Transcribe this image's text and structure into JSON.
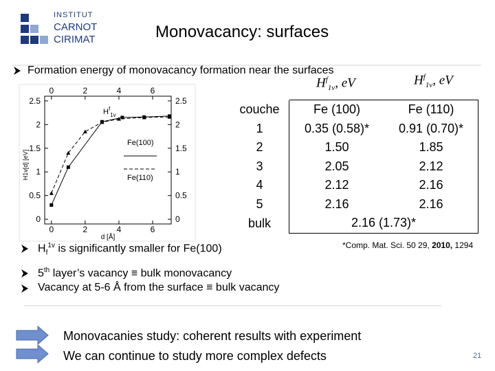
{
  "logo": {
    "lines": [
      "INSTITUT",
      "CARNOT",
      "CIRIMAT"
    ]
  },
  "title": "Monovacancy: surfaces",
  "intro": "Formation energy of  monovacancy formation near the surfaces",
  "formula_labels": [
    {
      "symbol": "H",
      "sup": "f",
      "sub": "1v",
      "rest": ", eV"
    },
    {
      "symbol": "H",
      "sup": "f",
      "sub": "1v",
      "rest": ", eV"
    }
  ],
  "figure": {
    "type": "line",
    "xlim": [
      -0.4,
      7.1
    ],
    "ylim": [
      -0.1,
      2.6
    ],
    "xticks": [
      0,
      2,
      4,
      6
    ],
    "yticks": [
      0,
      0.5,
      1,
      1.5,
      2,
      2.5
    ],
    "y_label": "H1v[d] [eV]",
    "x_label": "d [Å]",
    "annotation": {
      "symbol": "H",
      "sup": "f",
      "sub": "1v"
    },
    "series": [
      {
        "name": "Fe(100)",
        "color": "#000000",
        "x": [
          0,
          1,
          3,
          4.2,
          5.5,
          7
        ],
        "values": [
          0.3,
          1.1,
          2.06,
          2.15,
          2.16,
          2.18
        ]
      },
      {
        "name": "Fe(110)",
        "color": "#000000",
        "x": [
          0,
          1,
          2,
          3,
          4,
          5.5,
          7
        ],
        "values": [
          0.55,
          1.4,
          1.85,
          2.05,
          2.12,
          2.15,
          2.16
        ]
      }
    ]
  },
  "table": {
    "header": [
      "couche",
      "Fe (100)",
      "Fe (110)"
    ],
    "rows": [
      [
        "1",
        "0.35 (0.58)*",
        "0.91 (0.70)*"
      ],
      [
        "2",
        "1.50",
        "1.85"
      ],
      [
        "3",
        "2.05",
        "2.12"
      ],
      [
        "4",
        "2.12",
        "2.16"
      ],
      [
        "5",
        "2.16",
        "2.16"
      ],
      [
        "bulk",
        "2.16 (1.73)*"
      ]
    ]
  },
  "reference": {
    "text": "*Comp. Mat. Sci. 50 29, ",
    "year": "2010,",
    "page": " 1294"
  },
  "bullets": [
    {
      "symbol": "H",
      "sub": "f",
      "sup": "1v",
      "text": " is significantly smaller for Fe(100)"
    },
    {
      "number": "5",
      "sup": "th",
      "text": " layer’s vacancy ≡ bulk monovacancy"
    },
    {
      "text": "Vacancy  at 5-6 Å from the surface ≡ bulk vacancy"
    }
  ],
  "conclusions": [
    "Monovacanies study: coherent results with experiment",
    "We can continue to study more complex defects"
  ],
  "page_number": "21"
}
